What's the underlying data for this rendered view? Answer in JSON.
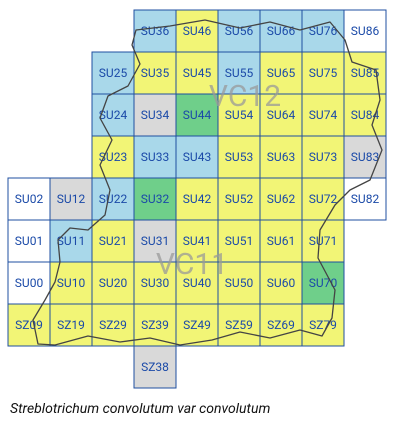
{
  "map": {
    "cells": [
      {
        "label": "SU36",
        "color": "#a9d8ea"
      },
      {
        "label": "SU46",
        "color": "#f2f576"
      },
      {
        "label": "SU56",
        "color": "#a9d8ea"
      },
      {
        "label": "SU66",
        "color": "#a9d8ea"
      },
      {
        "label": "SU76",
        "color": "#a9d8ea"
      },
      {
        "label": "SU86",
        "color": "#ffffff"
      },
      {
        "label": "SU25",
        "color": "#a9d8ea"
      },
      {
        "label": "SU35",
        "color": "#f2f576"
      },
      {
        "label": "SU45",
        "color": "#f2f576"
      },
      {
        "label": "SU55",
        "color": "#a9d8ea"
      },
      {
        "label": "SU65",
        "color": "#f2f576"
      },
      {
        "label": "SU75",
        "color": "#f2f576"
      },
      {
        "label": "SU85",
        "color": "#f2f576"
      },
      {
        "label": "SU24",
        "color": "#a9d8ea"
      },
      {
        "label": "SU34",
        "color": "#d9d9d9"
      },
      {
        "label": "SU44",
        "color": "#6fcf8a"
      },
      {
        "label": "SU54",
        "color": "#f2f576"
      },
      {
        "label": "SU64",
        "color": "#f2f576"
      },
      {
        "label": "SU74",
        "color": "#f2f576"
      },
      {
        "label": "SU84",
        "color": "#f2f576"
      },
      {
        "label": "SU23",
        "color": "#f2f576"
      },
      {
        "label": "SU33",
        "color": "#a9d8ea"
      },
      {
        "label": "SU43",
        "color": "#a9d8ea"
      },
      {
        "label": "SU53",
        "color": "#f2f576"
      },
      {
        "label": "SU63",
        "color": "#f2f576"
      },
      {
        "label": "SU73",
        "color": "#f2f576"
      },
      {
        "label": "SU83",
        "color": "#d9d9d9"
      },
      {
        "label": "SU02",
        "color": "#ffffff"
      },
      {
        "label": "SU12",
        "color": "#d9d9d9"
      },
      {
        "label": "SU22",
        "color": "#a9d8ea"
      },
      {
        "label": "SU32",
        "color": "#6fcf8a"
      },
      {
        "label": "SU42",
        "color": "#f2f576"
      },
      {
        "label": "SU52",
        "color": "#f2f576"
      },
      {
        "label": "SU62",
        "color": "#f2f576"
      },
      {
        "label": "SU72",
        "color": "#f2f576"
      },
      {
        "label": "SU82",
        "color": "#ffffff"
      },
      {
        "label": "SU01",
        "color": "#ffffff"
      },
      {
        "label": "SU11",
        "color": "#a9d8ea"
      },
      {
        "label": "SU21",
        "color": "#f2f576"
      },
      {
        "label": "SU31",
        "color": "#d9d9d9"
      },
      {
        "label": "SU41",
        "color": "#f2f576"
      },
      {
        "label": "SU51",
        "color": "#f2f576"
      },
      {
        "label": "SU61",
        "color": "#f2f576"
      },
      {
        "label": "SU71",
        "color": "#f2f576"
      },
      {
        "label": "SU00",
        "color": "#ffffff"
      },
      {
        "label": "SU10",
        "color": "#f2f576"
      },
      {
        "label": "SU20",
        "color": "#f2f576"
      },
      {
        "label": "SU30",
        "color": "#f2f576"
      },
      {
        "label": "SU40",
        "color": "#f2f576"
      },
      {
        "label": "SU50",
        "color": "#f2f576"
      },
      {
        "label": "SU60",
        "color": "#f2f576"
      },
      {
        "label": "SU70",
        "color": "#6fcf8a"
      },
      {
        "label": "SZ09",
        "color": "#f2f576"
      },
      {
        "label": "SZ19",
        "color": "#f2f576"
      },
      {
        "label": "SZ29",
        "color": "#f2f576"
      },
      {
        "label": "SZ39",
        "color": "#f2f576"
      },
      {
        "label": "SZ49",
        "color": "#f2f576"
      },
      {
        "label": "SZ59",
        "color": "#f2f576"
      },
      {
        "label": "SZ69",
        "color": "#f2f576"
      },
      {
        "label": "SZ79",
        "color": "#f2f576"
      },
      {
        "label": "SZ38",
        "color": "#d9d9d9"
      }
    ],
    "regions": [
      "VC12",
      "VC11"
    ],
    "caption": "Streblotrichum convolutum var convolutum"
  }
}
